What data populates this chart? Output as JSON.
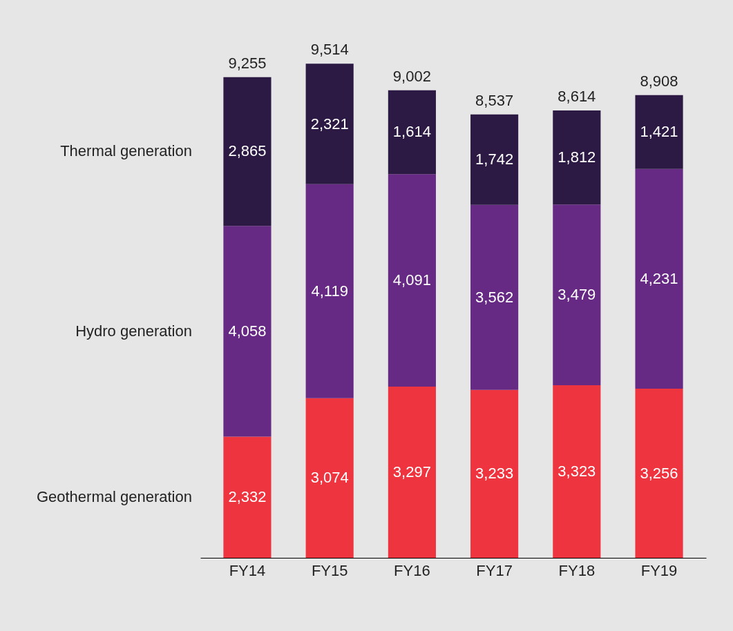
{
  "chart_data": {
    "type": "bar",
    "stacked": true,
    "legend": false,
    "grid": false,
    "categories": [
      "FY14",
      "FY15",
      "FY16",
      "FY17",
      "FY18",
      "FY19"
    ],
    "series": [
      {
        "name": "Geothermal generation",
        "color": "#ee343f",
        "values": [
          2332,
          3074,
          3297,
          3233,
          3323,
          3256
        ],
        "value_labels": [
          "2,332",
          "3,074",
          "3,297",
          "3,233",
          "3,323",
          "3,256"
        ]
      },
      {
        "name": "Hydro generation",
        "color": "#672a84",
        "values": [
          4058,
          4119,
          4091,
          3562,
          3479,
          4231
        ],
        "value_labels": [
          "4,058",
          "4,119",
          "4,091",
          "3,562",
          "3,479",
          "4,231"
        ]
      },
      {
        "name": "Thermal generation",
        "color": "#2c1a45",
        "values": [
          2865,
          2321,
          1614,
          1742,
          1812,
          1421
        ],
        "value_labels": [
          "2,865",
          "2,321",
          "1,614",
          "1,742",
          "1,812",
          "1,421"
        ]
      }
    ],
    "totals": [
      "9,255",
      "9,514",
      "9,002",
      "8,537",
      "8,614",
      "8,908"
    ]
  }
}
